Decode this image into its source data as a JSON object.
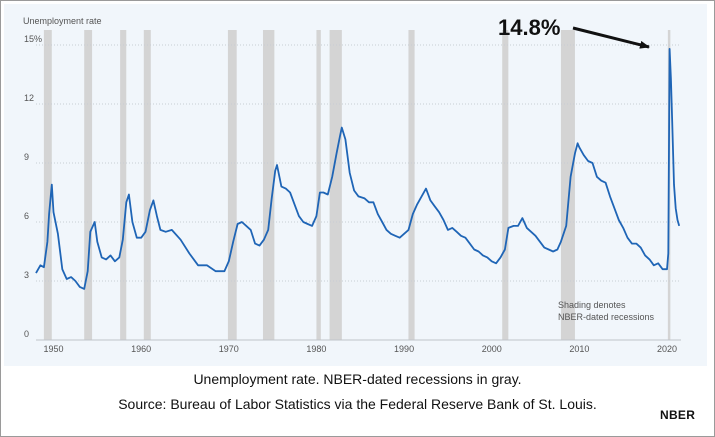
{
  "caption": {
    "line1": "Unemployment rate. NBER-dated recessions in gray.",
    "line2": "Source: Bureau of Labor Statistics via the Federal Reserve Bank of St. Louis."
  },
  "logo_text": "NBER",
  "colors": {
    "line": "#1f65b6",
    "recession": "#d4d4d4",
    "panel": "#f1f6fb",
    "grid": "#c8cdd3"
  },
  "chart_data": {
    "type": "line",
    "title": "Unemployment rate",
    "xlabel": "",
    "ylabel": "",
    "xlim": [
      1948,
      2021.6
    ],
    "ylim": [
      0,
      15
    ],
    "yticks": [
      {
        "value": 15,
        "label": "15%"
      },
      {
        "value": 12,
        "label": "12"
      },
      {
        "value": 9,
        "label": "9"
      },
      {
        "value": 6,
        "label": "6"
      },
      {
        "value": 3,
        "label": "3"
      },
      {
        "value": 0,
        "label": "0"
      }
    ],
    "xticks": [
      1950,
      1960,
      1970,
      1980,
      1990,
      2000,
      2010,
      2020
    ],
    "grid": "horizontal",
    "recessions": [
      [
        1948.9,
        1949.8
      ],
      [
        1953.5,
        1954.4
      ],
      [
        1957.6,
        1958.3
      ],
      [
        1960.3,
        1961.1
      ],
      [
        1969.9,
        1970.9
      ],
      [
        1973.9,
        1975.2
      ],
      [
        1980.0,
        1980.5
      ],
      [
        1981.5,
        1982.9
      ],
      [
        1990.5,
        1991.2
      ],
      [
        2001.2,
        2001.9
      ],
      [
        2007.9,
        2009.5
      ],
      [
        2020.1,
        2020.3
      ]
    ],
    "recession_note": [
      "Shading denotes",
      "NBER-dated recessions"
    ],
    "annotation": {
      "text": "14.8%",
      "x": 2020.3,
      "y": 14.8
    },
    "series": [
      {
        "points": [
          [
            1948.0,
            3.4
          ],
          [
            1948.5,
            3.8
          ],
          [
            1948.9,
            3.7
          ],
          [
            1949.3,
            5.0
          ],
          [
            1949.5,
            6.4
          ],
          [
            1949.8,
            7.9
          ],
          [
            1950.0,
            6.5
          ],
          [
            1950.5,
            5.4
          ],
          [
            1951.0,
            3.6
          ],
          [
            1951.5,
            3.1
          ],
          [
            1952.0,
            3.2
          ],
          [
            1952.5,
            3.0
          ],
          [
            1953.0,
            2.7
          ],
          [
            1953.5,
            2.6
          ],
          [
            1953.9,
            3.5
          ],
          [
            1954.2,
            5.5
          ],
          [
            1954.7,
            6.0
          ],
          [
            1955.0,
            5.0
          ],
          [
            1955.5,
            4.2
          ],
          [
            1956.0,
            4.1
          ],
          [
            1956.5,
            4.3
          ],
          [
            1957.0,
            4.0
          ],
          [
            1957.5,
            4.2
          ],
          [
            1957.9,
            5.1
          ],
          [
            1958.3,
            7.0
          ],
          [
            1958.6,
            7.4
          ],
          [
            1959.0,
            6.0
          ],
          [
            1959.5,
            5.2
          ],
          [
            1960.0,
            5.2
          ],
          [
            1960.5,
            5.5
          ],
          [
            1961.0,
            6.6
          ],
          [
            1961.4,
            7.1
          ],
          [
            1961.8,
            6.3
          ],
          [
            1962.2,
            5.6
          ],
          [
            1962.8,
            5.5
          ],
          [
            1963.5,
            5.6
          ],
          [
            1964.5,
            5.1
          ],
          [
            1965.5,
            4.4
          ],
          [
            1966.5,
            3.8
          ],
          [
            1967.5,
            3.8
          ],
          [
            1968.5,
            3.5
          ],
          [
            1969.5,
            3.5
          ],
          [
            1970.0,
            4.0
          ],
          [
            1970.5,
            5.0
          ],
          [
            1971.0,
            5.9
          ],
          [
            1971.5,
            6.0
          ],
          [
            1972.0,
            5.8
          ],
          [
            1972.5,
            5.6
          ],
          [
            1973.0,
            4.9
          ],
          [
            1973.5,
            4.8
          ],
          [
            1974.0,
            5.1
          ],
          [
            1974.5,
            5.6
          ],
          [
            1974.9,
            7.2
          ],
          [
            1975.3,
            8.6
          ],
          [
            1975.5,
            8.9
          ],
          [
            1976.0,
            7.8
          ],
          [
            1976.5,
            7.7
          ],
          [
            1977.0,
            7.5
          ],
          [
            1977.5,
            6.9
          ],
          [
            1978.0,
            6.3
          ],
          [
            1978.5,
            6.0
          ],
          [
            1979.0,
            5.9
          ],
          [
            1979.5,
            5.8
          ],
          [
            1980.0,
            6.3
          ],
          [
            1980.4,
            7.5
          ],
          [
            1980.8,
            7.5
          ],
          [
            1981.3,
            7.4
          ],
          [
            1981.8,
            8.3
          ],
          [
            1982.3,
            9.5
          ],
          [
            1982.7,
            10.4
          ],
          [
            1982.9,
            10.8
          ],
          [
            1983.3,
            10.2
          ],
          [
            1983.8,
            8.5
          ],
          [
            1984.3,
            7.6
          ],
          [
            1984.8,
            7.3
          ],
          [
            1985.5,
            7.2
          ],
          [
            1986.0,
            7.0
          ],
          [
            1986.5,
            7.0
          ],
          [
            1987.0,
            6.4
          ],
          [
            1987.5,
            6.0
          ],
          [
            1988.0,
            5.6
          ],
          [
            1988.5,
            5.4
          ],
          [
            1989.0,
            5.3
          ],
          [
            1989.5,
            5.2
          ],
          [
            1990.0,
            5.4
          ],
          [
            1990.5,
            5.6
          ],
          [
            1991.0,
            6.4
          ],
          [
            1991.5,
            6.9
          ],
          [
            1992.0,
            7.3
          ],
          [
            1992.5,
            7.7
          ],
          [
            1993.0,
            7.1
          ],
          [
            1993.5,
            6.8
          ],
          [
            1994.0,
            6.5
          ],
          [
            1994.5,
            6.1
          ],
          [
            1995.0,
            5.6
          ],
          [
            1995.5,
            5.7
          ],
          [
            1996.0,
            5.5
          ],
          [
            1996.5,
            5.3
          ],
          [
            1997.0,
            5.2
          ],
          [
            1997.5,
            4.9
          ],
          [
            1998.0,
            4.6
          ],
          [
            1998.5,
            4.5
          ],
          [
            1999.0,
            4.3
          ],
          [
            1999.5,
            4.2
          ],
          [
            2000.0,
            4.0
          ],
          [
            2000.5,
            3.9
          ],
          [
            2001.0,
            4.2
          ],
          [
            2001.5,
            4.6
          ],
          [
            2001.9,
            5.7
          ],
          [
            2002.5,
            5.8
          ],
          [
            2003.0,
            5.8
          ],
          [
            2003.5,
            6.2
          ],
          [
            2004.0,
            5.7
          ],
          [
            2004.5,
            5.5
          ],
          [
            2005.0,
            5.3
          ],
          [
            2005.5,
            5.0
          ],
          [
            2006.0,
            4.7
          ],
          [
            2006.5,
            4.6
          ],
          [
            2007.0,
            4.5
          ],
          [
            2007.5,
            4.6
          ],
          [
            2007.9,
            5.0
          ],
          [
            2008.5,
            5.8
          ],
          [
            2009.0,
            8.3
          ],
          [
            2009.5,
            9.5
          ],
          [
            2009.8,
            10.0
          ],
          [
            2010.0,
            9.8
          ],
          [
            2010.5,
            9.4
          ],
          [
            2011.0,
            9.1
          ],
          [
            2011.5,
            9.0
          ],
          [
            2012.0,
            8.3
          ],
          [
            2012.5,
            8.1
          ],
          [
            2013.0,
            8.0
          ],
          [
            2013.5,
            7.3
          ],
          [
            2014.0,
            6.7
          ],
          [
            2014.5,
            6.1
          ],
          [
            2015.0,
            5.7
          ],
          [
            2015.5,
            5.2
          ],
          [
            2016.0,
            4.9
          ],
          [
            2016.5,
            4.9
          ],
          [
            2017.0,
            4.7
          ],
          [
            2017.5,
            4.3
          ],
          [
            2018.0,
            4.1
          ],
          [
            2018.5,
            3.8
          ],
          [
            2019.0,
            3.9
          ],
          [
            2019.5,
            3.6
          ],
          [
            2020.0,
            3.6
          ],
          [
            2020.15,
            4.4
          ],
          [
            2020.3,
            14.8
          ],
          [
            2020.45,
            13.3
          ],
          [
            2020.6,
            11.1
          ],
          [
            2020.8,
            7.9
          ],
          [
            2021.0,
            6.7
          ],
          [
            2021.2,
            6.1
          ],
          [
            2021.4,
            5.8
          ]
        ]
      }
    ]
  }
}
